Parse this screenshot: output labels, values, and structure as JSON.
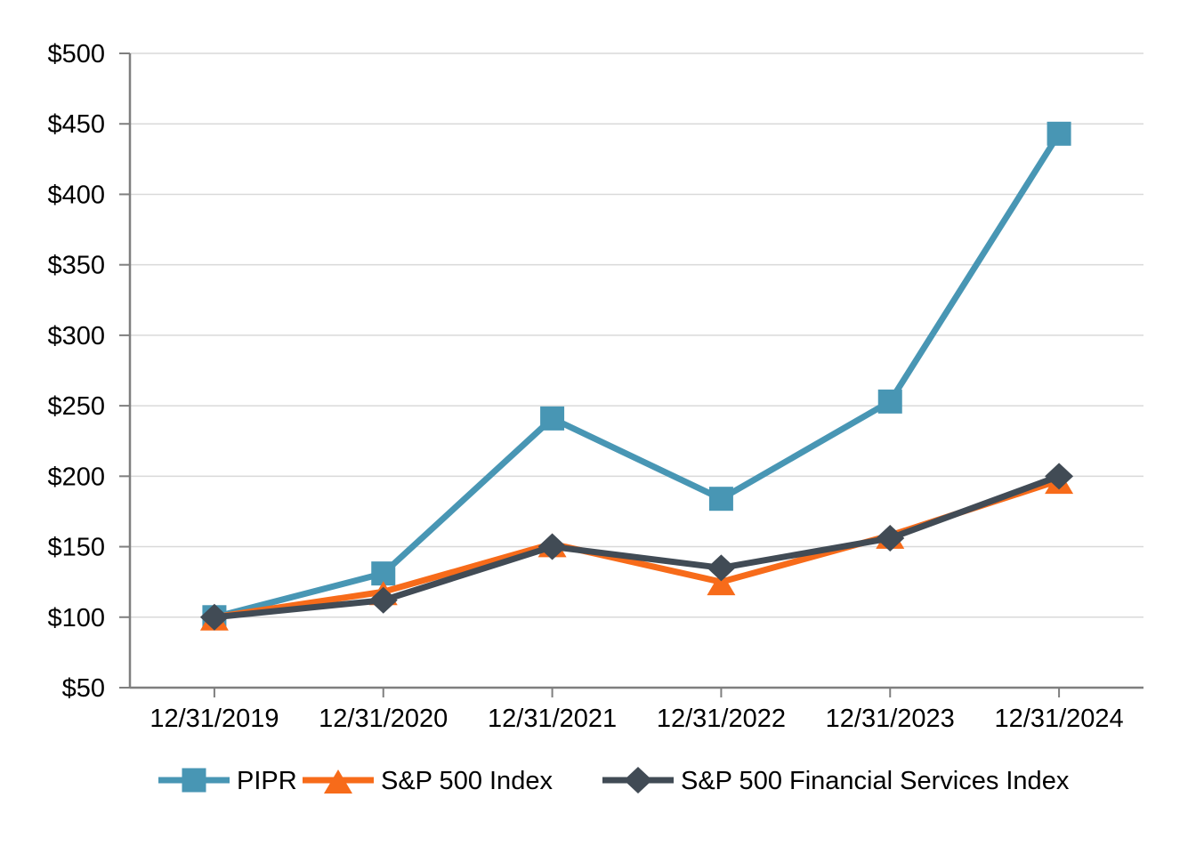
{
  "chart_data": {
    "type": "line",
    "title": "",
    "xlabel": "",
    "ylabel": "",
    "categories": [
      "12/31/2019",
      "12/31/2020",
      "12/31/2021",
      "12/31/2022",
      "12/31/2023",
      "12/31/2024"
    ],
    "series": [
      {
        "name": "PIPR",
        "marker": "square",
        "color": "#4896B4",
        "values": [
          100,
          131,
          241,
          184,
          253,
          443
        ]
      },
      {
        "name": "S&P 500 Index",
        "marker": "triangle",
        "color": "#F76B1A",
        "values": [
          100,
          118,
          152,
          125,
          158,
          197
        ]
      },
      {
        "name": "S&P 500 Financial Services Index",
        "marker": "diamond",
        "color": "#414B55",
        "values": [
          100,
          112,
          150,
          135,
          156,
          200
        ]
      }
    ],
    "ylim": [
      50,
      500
    ],
    "y_step": 50,
    "y_tick_labels": [
      "$50",
      "$100",
      "$150",
      "$200",
      "$250",
      "$300",
      "$350",
      "$400",
      "$450",
      "$500"
    ],
    "grid": true,
    "legend_position": "bottom"
  },
  "colors": {
    "background": "#FFFFFF",
    "grid": "#D9D9D9",
    "axis": "#7F7F7F",
    "text": "#000000"
  }
}
